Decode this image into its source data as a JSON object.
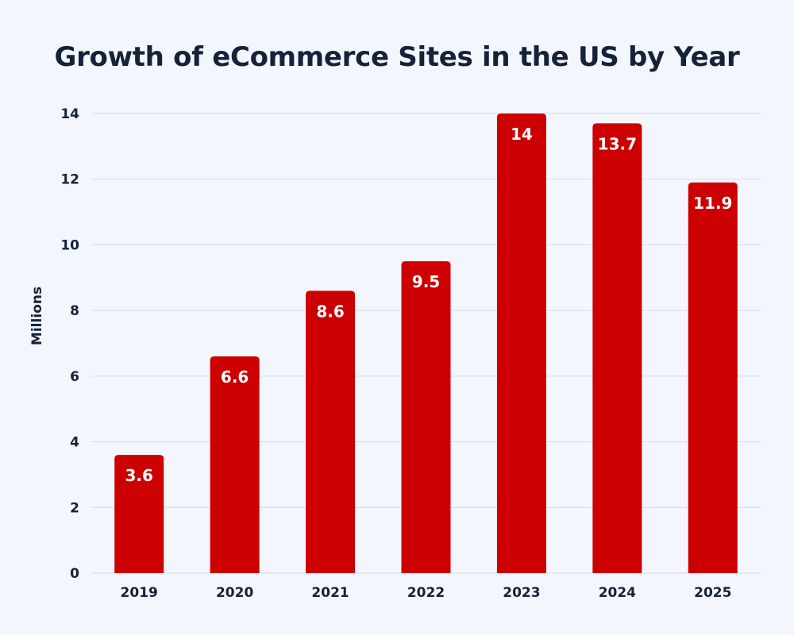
{
  "chart_data": {
    "type": "bar",
    "title": "Growth of eCommerce Sites in the US by Year",
    "xlabel": "",
    "ylabel": "Millions",
    "categories": [
      "2019",
      "2020",
      "2021",
      "2022",
      "2023",
      "2024",
      "2025"
    ],
    "values": [
      3.6,
      6.6,
      8.6,
      9.5,
      14,
      13.7,
      11.9
    ],
    "value_labels": [
      "3.6",
      "6.6",
      "8.6",
      "9.5",
      "14",
      "13.7",
      "11.9"
    ],
    "ylim": [
      0,
      14
    ],
    "yticks": [
      0,
      2,
      4,
      6,
      8,
      10,
      12,
      14
    ],
    "grid": true,
    "legend": "none",
    "colors": {
      "bar": "#cc0000",
      "grid": "#d6dbe4",
      "background": "#f3f7fd",
      "text": "#16213a"
    }
  }
}
